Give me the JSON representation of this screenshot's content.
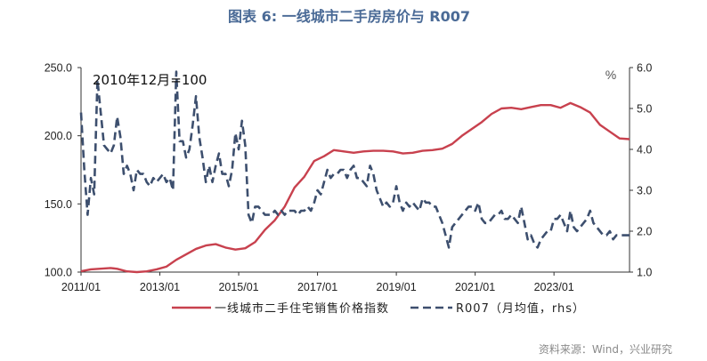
{
  "chart_data": {
    "type": "line",
    "title": "图表 6:  一线城市二手房房价与 R007",
    "annotation": "2010年12月=100",
    "right_unit": "%",
    "source": "资料来源：Wind，兴业研究",
    "left_axis": {
      "min": 100,
      "max": 250,
      "ticks": [
        "100.0",
        "150.0",
        "200.0",
        "250.0"
      ]
    },
    "right_axis": {
      "min": 1.0,
      "max": 6.0,
      "ticks": [
        "1.0",
        "2.0",
        "3.0",
        "4.0",
        "5.0",
        "6.0"
      ]
    },
    "x_ticks": [
      "2011/01",
      "2013/01",
      "2015/01",
      "2017/01",
      "2019/01",
      "2021/01",
      "2023/01"
    ],
    "colors": {
      "index": "#c8414e",
      "r007": "#3d4f6e"
    },
    "series": [
      {
        "name": "一线城市二手住宅销售价格指数",
        "axis": "left",
        "style": "solid",
        "points": [
          [
            "2011-01",
            100.6
          ],
          [
            "2011-04",
            102.0
          ],
          [
            "2011-07",
            102.5
          ],
          [
            "2011-10",
            103.0
          ],
          [
            "2011-12",
            102.4
          ],
          [
            "2012-03",
            100.5
          ],
          [
            "2012-06",
            100.0
          ],
          [
            "2012-09",
            100.5
          ],
          [
            "2012-12",
            102.0
          ],
          [
            "2013-03",
            104.0
          ],
          [
            "2013-06",
            109.0
          ],
          [
            "2013-09",
            113.0
          ],
          [
            "2013-12",
            117.0
          ],
          [
            "2014-03",
            119.5
          ],
          [
            "2014-06",
            120.5
          ],
          [
            "2014-09",
            118.0
          ],
          [
            "2014-12",
            116.5
          ],
          [
            "2015-03",
            117.5
          ],
          [
            "2015-06",
            122.0
          ],
          [
            "2015-09",
            131.0
          ],
          [
            "2015-12",
            138.0
          ],
          [
            "2016-03",
            148.0
          ],
          [
            "2016-06",
            162.0
          ],
          [
            "2016-09",
            170.0
          ],
          [
            "2016-12",
            181.5
          ],
          [
            "2017-03",
            185.0
          ],
          [
            "2017-06",
            189.5
          ],
          [
            "2017-09",
            188.5
          ],
          [
            "2017-12",
            187.5
          ],
          [
            "2018-03",
            188.5
          ],
          [
            "2018-06",
            189.0
          ],
          [
            "2018-09",
            189.0
          ],
          [
            "2018-12",
            188.5
          ],
          [
            "2019-03",
            187.0
          ],
          [
            "2019-06",
            187.5
          ],
          [
            "2019-09",
            189.0
          ],
          [
            "2019-12",
            189.5
          ],
          [
            "2020-03",
            190.5
          ],
          [
            "2020-06",
            194.0
          ],
          [
            "2020-09",
            200.0
          ],
          [
            "2020-12",
            205.0
          ],
          [
            "2021-03",
            210.0
          ],
          [
            "2021-06",
            216.0
          ],
          [
            "2021-09",
            220.0
          ],
          [
            "2021-12",
            220.5
          ],
          [
            "2022-03",
            219.5
          ],
          [
            "2022-06",
            221.0
          ],
          [
            "2022-09",
            222.5
          ],
          [
            "2022-12",
            222.5
          ],
          [
            "2023-03",
            220.5
          ],
          [
            "2023-06",
            224.0
          ],
          [
            "2023-09",
            221.0
          ],
          [
            "2023-12",
            217.0
          ],
          [
            "2024-03",
            208.0
          ],
          [
            "2024-06",
            203.0
          ],
          [
            "2024-09",
            198.0
          ],
          [
            "2024-12",
            197.5
          ]
        ]
      },
      {
        "name": "R007（月均值，rhs）",
        "axis": "right",
        "style": "dashed",
        "points": [
          [
            "2011-01",
            4.9
          ],
          [
            "2011-02",
            3.5
          ],
          [
            "2011-03",
            2.4
          ],
          [
            "2011-04",
            3.3
          ],
          [
            "2011-05",
            2.9
          ],
          [
            "2011-06",
            5.7
          ],
          [
            "2011-07",
            4.9
          ],
          [
            "2011-08",
            4.1
          ],
          [
            "2011-09",
            4.0
          ],
          [
            "2011-10",
            3.9
          ],
          [
            "2011-11",
            4.1
          ],
          [
            "2011-12",
            4.8
          ],
          [
            "2012-01",
            4.3
          ],
          [
            "2012-02",
            3.4
          ],
          [
            "2012-03",
            3.6
          ],
          [
            "2012-04",
            3.4
          ],
          [
            "2012-05",
            3.0
          ],
          [
            "2012-06",
            3.5
          ],
          [
            "2012-07",
            3.4
          ],
          [
            "2012-08",
            3.4
          ],
          [
            "2012-09",
            3.2
          ],
          [
            "2012-10",
            3.1
          ],
          [
            "2012-11",
            3.3
          ],
          [
            "2012-12",
            3.2
          ],
          [
            "2013-01",
            3.3
          ],
          [
            "2013-02",
            3.4
          ],
          [
            "2013-03",
            3.2
          ],
          [
            "2013-04",
            3.3
          ],
          [
            "2013-05",
            3.0
          ],
          [
            "2013-06",
            5.9
          ],
          [
            "2013-07",
            4.2
          ],
          [
            "2013-08",
            4.2
          ],
          [
            "2013-09",
            3.8
          ],
          [
            "2013-10",
            4.0
          ],
          [
            "2013-11",
            4.6
          ],
          [
            "2013-12",
            5.3
          ],
          [
            "2014-01",
            4.3
          ],
          [
            "2014-02",
            3.8
          ],
          [
            "2014-03",
            3.2
          ],
          [
            "2014-04",
            3.6
          ],
          [
            "2014-05",
            3.2
          ],
          [
            "2014-06",
            3.6
          ],
          [
            "2014-07",
            3.9
          ],
          [
            "2014-08",
            3.4
          ],
          [
            "2014-09",
            3.4
          ],
          [
            "2014-10",
            3.1
          ],
          [
            "2014-11",
            3.5
          ],
          [
            "2014-12",
            4.4
          ],
          [
            "2015-01",
            4.0
          ],
          [
            "2015-02",
            4.7
          ],
          [
            "2015-03",
            4.1
          ],
          [
            "2015-04",
            2.4
          ],
          [
            "2015-05",
            2.2
          ],
          [
            "2015-06",
            2.6
          ],
          [
            "2015-07",
            2.6
          ],
          [
            "2015-08",
            2.5
          ],
          [
            "2015-09",
            2.4
          ],
          [
            "2015-10",
            2.4
          ],
          [
            "2015-11",
            2.4
          ],
          [
            "2015-12",
            2.5
          ],
          [
            "2016-01",
            2.4
          ],
          [
            "2016-02",
            2.5
          ],
          [
            "2016-03",
            2.4
          ],
          [
            "2016-04",
            2.5
          ],
          [
            "2016-05",
            2.5
          ],
          [
            "2016-06",
            2.5
          ],
          [
            "2016-07",
            2.4
          ],
          [
            "2016-08",
            2.5
          ],
          [
            "2016-09",
            2.5
          ],
          [
            "2016-10",
            2.6
          ],
          [
            "2016-11",
            2.5
          ],
          [
            "2016-12",
            2.7
          ],
          [
            "2017-01",
            3.0
          ],
          [
            "2017-02",
            2.9
          ],
          [
            "2017-03",
            3.2
          ],
          [
            "2017-04",
            3.5
          ],
          [
            "2017-05",
            3.3
          ],
          [
            "2017-06",
            3.4
          ],
          [
            "2017-07",
            3.4
          ],
          [
            "2017-08",
            3.5
          ],
          [
            "2017-09",
            3.5
          ],
          [
            "2017-10",
            3.3
          ],
          [
            "2017-11",
            3.5
          ],
          [
            "2017-12",
            3.6
          ],
          [
            "2018-01",
            3.3
          ],
          [
            "2018-02",
            3.3
          ],
          [
            "2018-03",
            3.2
          ],
          [
            "2018-04",
            3.1
          ],
          [
            "2018-05",
            3.6
          ],
          [
            "2018-06",
            3.4
          ],
          [
            "2018-07",
            3.0
          ],
          [
            "2018-08",
            2.8
          ],
          [
            "2018-09",
            2.6
          ],
          [
            "2018-10",
            2.7
          ],
          [
            "2018-11",
            2.6
          ],
          [
            "2018-12",
            2.7
          ],
          [
            "2019-01",
            3.1
          ],
          [
            "2019-02",
            2.7
          ],
          [
            "2019-03",
            2.5
          ],
          [
            "2019-04",
            2.7
          ],
          [
            "2019-05",
            2.6
          ],
          [
            "2019-06",
            2.7
          ],
          [
            "2019-07",
            2.6
          ],
          [
            "2019-08",
            2.5
          ],
          [
            "2019-09",
            2.8
          ],
          [
            "2019-10",
            2.7
          ],
          [
            "2019-11",
            2.7
          ],
          [
            "2019-12",
            2.6
          ],
          [
            "2020-01",
            2.6
          ],
          [
            "2020-02",
            2.4
          ],
          [
            "2020-03",
            2.2
          ],
          [
            "2020-04",
            1.9
          ],
          [
            "2020-05",
            1.6
          ],
          [
            "2020-06",
            2.1
          ],
          [
            "2020-07",
            2.2
          ],
          [
            "2020-08",
            2.3
          ],
          [
            "2020-09",
            2.4
          ],
          [
            "2020-10",
            2.5
          ],
          [
            "2020-11",
            2.6
          ],
          [
            "2020-12",
            2.6
          ],
          [
            "2021-01",
            2.5
          ],
          [
            "2021-02",
            2.7
          ],
          [
            "2021-03",
            2.3
          ],
          [
            "2021-04",
            2.2
          ],
          [
            "2021-05",
            2.2
          ],
          [
            "2021-06",
            2.3
          ],
          [
            "2021-07",
            2.4
          ],
          [
            "2021-08",
            2.4
          ],
          [
            "2021-09",
            2.5
          ],
          [
            "2021-10",
            2.3
          ],
          [
            "2021-11",
            2.3
          ],
          [
            "2021-12",
            2.4
          ],
          [
            "2022-01",
            2.3
          ],
          [
            "2022-02",
            2.2
          ],
          [
            "2022-03",
            2.6
          ],
          [
            "2022-04",
            2.2
          ],
          [
            "2022-05",
            1.8
          ],
          [
            "2022-06",
            1.9
          ],
          [
            "2022-07",
            1.7
          ],
          [
            "2022-08",
            1.6
          ],
          [
            "2022-09",
            1.8
          ],
          [
            "2022-10",
            1.9
          ],
          [
            "2022-11",
            2.0
          ],
          [
            "2022-12",
            2.0
          ],
          [
            "2023-01",
            2.3
          ],
          [
            "2023-02",
            2.3
          ],
          [
            "2023-03",
            2.4
          ],
          [
            "2023-04",
            2.2
          ],
          [
            "2023-05",
            2.0
          ],
          [
            "2023-06",
            2.5
          ],
          [
            "2023-07",
            2.1
          ],
          [
            "2023-08",
            2.0
          ],
          [
            "2023-09",
            2.1
          ],
          [
            "2023-10",
            2.2
          ],
          [
            "2023-11",
            2.3
          ],
          [
            "2023-12",
            2.5
          ],
          [
            "2024-01",
            2.2
          ],
          [
            "2024-02",
            2.1
          ],
          [
            "2024-03",
            2.0
          ],
          [
            "2024-04",
            1.9
          ],
          [
            "2024-05",
            1.9
          ],
          [
            "2024-06",
            2.0
          ],
          [
            "2024-07",
            1.8
          ],
          [
            "2024-08",
            1.9
          ],
          [
            "2024-09",
            1.9
          ],
          [
            "2024-10",
            1.9
          ],
          [
            "2024-11",
            1.9
          ],
          [
            "2024-12",
            1.9
          ]
        ]
      }
    ]
  }
}
